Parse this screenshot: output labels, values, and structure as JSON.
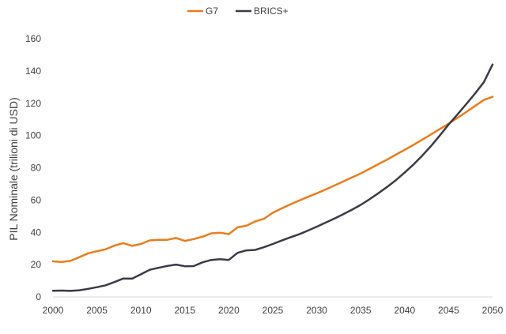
{
  "chart_data": {
    "type": "line",
    "title": "",
    "xlabel": "",
    "ylabel": "PIL Nominale (trilioni di USD)",
    "xlim": [
      2000,
      2050
    ],
    "ylim": [
      0,
      160
    ],
    "xticks": [
      2000,
      2005,
      2010,
      2015,
      2020,
      2025,
      2030,
      2035,
      2040,
      2045,
      2050
    ],
    "yticks": [
      0,
      20,
      40,
      60,
      80,
      100,
      120,
      140,
      160
    ],
    "grid": false,
    "legend_position": "top-center",
    "x": [
      2000,
      2001,
      2002,
      2003,
      2004,
      2005,
      2006,
      2007,
      2008,
      2009,
      2010,
      2011,
      2012,
      2013,
      2014,
      2015,
      2016,
      2017,
      2018,
      2019,
      2020,
      2021,
      2022,
      2023,
      2024,
      2025,
      2026,
      2027,
      2028,
      2029,
      2030,
      2031,
      2032,
      2033,
      2034,
      2035,
      2036,
      2037,
      2038,
      2039,
      2040,
      2041,
      2042,
      2043,
      2044,
      2045,
      2046,
      2047,
      2048,
      2049,
      2050
    ],
    "series": [
      {
        "name": "G7",
        "color": "#E97D1C",
        "values": [
          22,
          21.7,
          22.3,
          24.6,
          27,
          28.3,
          29.5,
          31.8,
          33.3,
          31.6,
          32.8,
          35,
          35.4,
          35.4,
          36.5,
          34.7,
          35.8,
          37.3,
          39.4,
          39.8,
          38.9,
          43.1,
          44.1,
          46.8,
          48.4,
          52.1,
          54.8,
          57.3,
          59.7,
          62,
          64.2,
          66.5,
          69,
          71.5,
          74,
          76.5,
          79.3,
          82.2,
          85.1,
          88.1,
          91.1,
          94.2,
          97.4,
          100.7,
          104,
          107.3,
          110.9,
          114.5,
          118.3,
          122,
          124
        ]
      },
      {
        "name": "BRICS+",
        "color": "#3A3A48",
        "values": [
          3.8,
          3.9,
          3.7,
          4.1,
          5,
          6,
          7.2,
          9.2,
          11.4,
          11.3,
          14,
          16.8,
          18,
          19.2,
          20,
          19,
          19.1,
          21.4,
          22.9,
          23.4,
          22.9,
          27.3,
          28.8,
          29.1,
          30.8,
          32.8,
          34.9,
          36.9,
          38.8,
          41.1,
          43.5,
          46,
          48.5,
          51.2,
          54,
          57,
          60.5,
          64.2,
          68.1,
          72.3,
          77,
          82,
          87.5,
          93.5,
          100,
          106.8,
          113,
          119.4,
          126,
          133,
          144
        ]
      }
    ]
  }
}
